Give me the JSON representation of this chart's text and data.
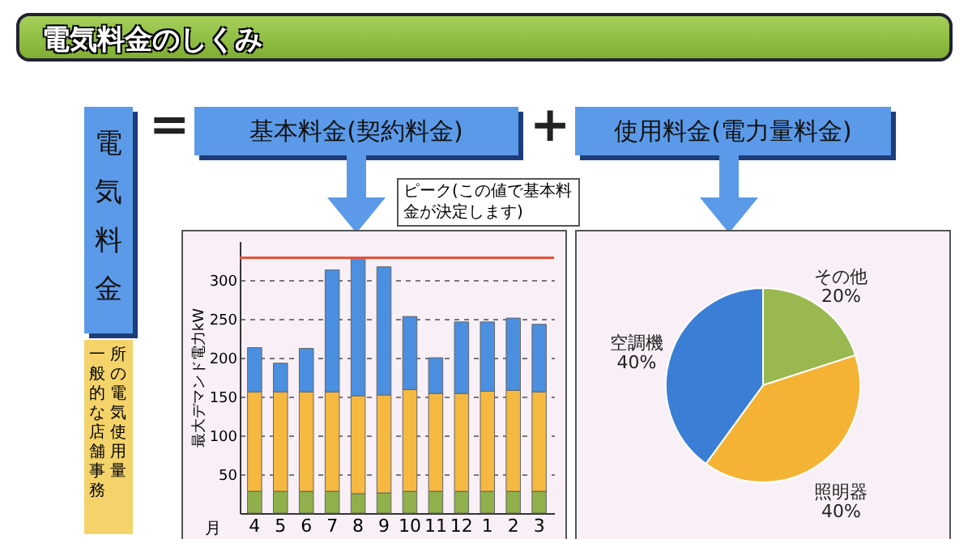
{
  "chart_data": [
    {
      "type": "other",
      "title": "電気料金のしくみ",
      "annotations": [
        "電気料金",
        "=",
        "+",
        "一般的な店舗事務所の電気使用量"
      ]
    },
    {
      "type": "bar",
      "title": "基本料金(契約料金)",
      "xlabel": "月",
      "ylabel": "最大デマンド電力kW",
      "stacked": true,
      "categories": [
        "4",
        "5",
        "6",
        "7",
        "8",
        "9",
        "10",
        "11",
        "12",
        "1",
        "2",
        "3"
      ],
      "series": [
        {
          "color": "#8fb04a",
          "values": [
            28,
            28,
            28,
            28,
            25,
            26,
            28,
            28,
            28,
            28,
            28,
            28
          ]
        },
        {
          "color": "#f5b840",
          "values": [
            128,
            128,
            128,
            128,
            126,
            126,
            131,
            126,
            126,
            129,
            130,
            128
          ]
        },
        {
          "color": "#4a8fe0",
          "values": [
            57,
            37,
            56,
            157,
            178,
            165,
            94,
            46,
            92,
            89,
            93,
            87
          ]
        }
      ],
      "ylim": [
        0,
        350
      ],
      "yticks": [
        50,
        100,
        150,
        200,
        250,
        300
      ],
      "grid": "y",
      "legend": false,
      "ref_lines": [
        {
          "axis": "y",
          "value": 329,
          "label": "ピーク(この値で基本料金が決定します)",
          "color": "#e8503a"
        }
      ]
    },
    {
      "type": "pie",
      "title": "使用料金(電力量料金)",
      "categories": [
        "その他",
        "照明器",
        "空調機"
      ],
      "values": [
        20,
        40,
        40
      ],
      "colors": [
        "#9ab850",
        "#f5b335",
        "#3a7fd5"
      ],
      "value_labels": [
        "20%",
        "40%",
        "40%"
      ],
      "legend": false
    }
  ]
}
